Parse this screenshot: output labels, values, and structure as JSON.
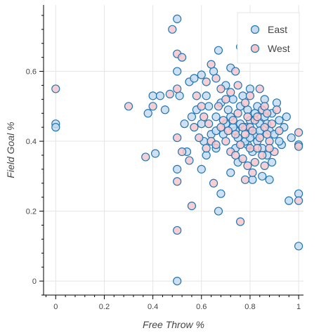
{
  "chart_data": {
    "type": "scatter",
    "title": "",
    "xlabel": "Free Throw %",
    "ylabel": "Field Goal %",
    "xlim": [
      -0.05,
      1.02
    ],
    "ylim": [
      -0.04,
      0.79
    ],
    "x_ticks": [
      0,
      0.2,
      0.4,
      0.6,
      0.8,
      1
    ],
    "x_tick_labels": [
      "0",
      "0.2",
      "0.4",
      "0.6",
      "0.8",
      "1"
    ],
    "y_ticks": [
      0,
      0.2,
      0.4,
      0.6
    ],
    "y_tick_labels": [
      "0",
      "0.2",
      "0.4",
      "0.6"
    ],
    "grid": true,
    "legend_position": "top-right",
    "series": [
      {
        "name": "East",
        "fill": "#c6dbef",
        "stroke": "#1f77b4",
        "points": [
          [
            0,
            0.45
          ],
          [
            0,
            0.44
          ],
          [
            0.5,
            0.75
          ],
          [
            0.5,
            0.6
          ],
          [
            0.5,
            0.32
          ],
          [
            0.5,
            0.0
          ],
          [
            0.4,
            0.53
          ],
          [
            0.43,
            0.53
          ],
          [
            0.45,
            0.49
          ],
          [
            0.38,
            0.48
          ],
          [
            0.41,
            0.365
          ],
          [
            0.6,
            0.59
          ],
          [
            0.62,
            0.53
          ],
          [
            0.65,
            0.6
          ],
          [
            0.67,
            0.66
          ],
          [
            0.72,
            0.61
          ],
          [
            0.7,
            0.56
          ],
          [
            0.55,
            0.57
          ],
          [
            0.57,
            0.58
          ],
          [
            0.63,
            0.5
          ],
          [
            0.68,
            0.51
          ],
          [
            0.66,
            0.47
          ],
          [
            0.6,
            0.45
          ],
          [
            0.64,
            0.42
          ],
          [
            0.61,
            0.4
          ],
          [
            0.66,
            0.38
          ],
          [
            0.62,
            0.36
          ],
          [
            0.6,
            0.32
          ],
          [
            0.68,
            0.25
          ],
          [
            0.67,
            0.2
          ],
          [
            0.72,
            0.31
          ],
          [
            0.75,
            0.34
          ],
          [
            0.7,
            0.45
          ],
          [
            0.72,
            0.47
          ],
          [
            0.74,
            0.43
          ],
          [
            0.76,
            0.5
          ],
          [
            0.78,
            0.44
          ],
          [
            0.8,
            0.46
          ],
          [
            0.82,
            0.42
          ],
          [
            0.84,
            0.45
          ],
          [
            0.86,
            0.47
          ],
          [
            0.88,
            0.43
          ],
          [
            0.79,
            0.39
          ],
          [
            0.81,
            0.37
          ],
          [
            0.83,
            0.4
          ],
          [
            0.85,
            0.38
          ],
          [
            0.87,
            0.36
          ],
          [
            0.9,
            0.42
          ],
          [
            0.92,
            0.46
          ],
          [
            0.95,
            0.47
          ],
          [
            0.97,
            0.41
          ],
          [
            0.89,
            0.34
          ],
          [
            0.85,
            0.3
          ],
          [
            0.81,
            0.29
          ],
          [
            0.88,
            0.29
          ],
          [
            0.93,
            0.39
          ],
          [
            1.0,
            0.39
          ],
          [
            1.0,
            0.25
          ],
          [
            1.0,
            0.1
          ],
          [
            0.96,
            0.23
          ],
          [
            0.73,
            0.52
          ],
          [
            0.77,
            0.53
          ],
          [
            0.8,
            0.55
          ],
          [
            0.83,
            0.5
          ],
          [
            0.86,
            0.52
          ],
          [
            0.91,
            0.51
          ],
          [
            0.75,
            0.41
          ],
          [
            0.78,
            0.4
          ],
          [
            0.8,
            0.41
          ],
          [
            0.74,
            0.38
          ],
          [
            0.69,
            0.42
          ],
          [
            0.66,
            0.43
          ],
          [
            0.53,
            0.45
          ],
          [
            0.56,
            0.47
          ],
          [
            0.58,
            0.49
          ],
          [
            0.54,
            0.37
          ],
          [
            0.51,
            0.53
          ],
          [
            0.82,
            0.48
          ],
          [
            0.84,
            0.43
          ],
          [
            0.87,
            0.45
          ],
          [
            0.79,
            0.49
          ],
          [
            0.76,
            0.45
          ],
          [
            0.71,
            0.49
          ],
          [
            0.73,
            0.44
          ],
          [
            0.92,
            0.4
          ],
          [
            0.94,
            0.44
          ],
          [
            0.89,
            0.48
          ]
        ]
      },
      {
        "name": "West",
        "fill": "#f6c6cb",
        "stroke": "#1f77b4",
        "points": [
          [
            0,
            0.55
          ],
          [
            0.3,
            0.5
          ],
          [
            0.37,
            0.355
          ],
          [
            0.4,
            0.5
          ],
          [
            0.48,
            0.72
          ],
          [
            0.47,
            0.535
          ],
          [
            0.5,
            0.65
          ],
          [
            0.52,
            0.64
          ],
          [
            0.5,
            0.55
          ],
          [
            0.5,
            0.41
          ],
          [
            0.5,
            0.285
          ],
          [
            0.5,
            0.145
          ],
          [
            0.56,
            0.215
          ],
          [
            0.52,
            0.37
          ],
          [
            0.55,
            0.345
          ],
          [
            0.58,
            0.53
          ],
          [
            0.6,
            0.5
          ],
          [
            0.62,
            0.57
          ],
          [
            0.64,
            0.62
          ],
          [
            0.66,
            0.58
          ],
          [
            0.68,
            0.55
          ],
          [
            0.7,
            0.52
          ],
          [
            0.76,
            0.67
          ],
          [
            0.74,
            0.6
          ],
          [
            0.65,
            0.28
          ],
          [
            0.62,
            0.38
          ],
          [
            0.64,
            0.4
          ],
          [
            0.66,
            0.39
          ],
          [
            0.68,
            0.44
          ],
          [
            0.7,
            0.4
          ],
          [
            0.72,
            0.37
          ],
          [
            0.74,
            0.36
          ],
          [
            0.76,
            0.39
          ],
          [
            0.78,
            0.42
          ],
          [
            0.8,
            0.44
          ],
          [
            0.82,
            0.46
          ],
          [
            0.84,
            0.41
          ],
          [
            0.86,
            0.44
          ],
          [
            0.88,
            0.4
          ],
          [
            0.79,
            0.47
          ],
          [
            0.81,
            0.43
          ],
          [
            0.83,
            0.47
          ],
          [
            0.85,
            0.49
          ],
          [
            0.87,
            0.42
          ],
          [
            0.77,
            0.35
          ],
          [
            0.79,
            0.33
          ],
          [
            0.81,
            0.31
          ],
          [
            0.76,
            0.17
          ],
          [
            0.78,
            0.29
          ],
          [
            0.86,
            0.33
          ],
          [
            0.9,
            0.37
          ],
          [
            0.92,
            0.43
          ],
          [
            1.0,
            0.425
          ],
          [
            1.0,
            0.385
          ],
          [
            1.0,
            0.23
          ],
          [
            0.72,
            0.54
          ],
          [
            0.75,
            0.56
          ],
          [
            0.78,
            0.51
          ],
          [
            0.8,
            0.53
          ],
          [
            0.84,
            0.55
          ],
          [
            0.86,
            0.5
          ],
          [
            0.89,
            0.45
          ],
          [
            0.91,
            0.49
          ],
          [
            0.73,
            0.46
          ],
          [
            0.75,
            0.48
          ],
          [
            0.71,
            0.43
          ],
          [
            0.69,
            0.46
          ],
          [
            0.67,
            0.5
          ],
          [
            0.63,
            0.45
          ],
          [
            0.61,
            0.47
          ],
          [
            0.57,
            0.44
          ],
          [
            0.59,
            0.41
          ],
          [
            0.83,
            0.38
          ],
          [
            0.85,
            0.36
          ],
          [
            0.88,
            0.38
          ],
          [
            0.8,
            0.38
          ],
          [
            0.82,
            0.34
          ],
          [
            0.77,
            0.44
          ],
          [
            0.74,
            0.42
          ],
          [
            0.87,
            0.48
          ]
        ]
      }
    ]
  }
}
